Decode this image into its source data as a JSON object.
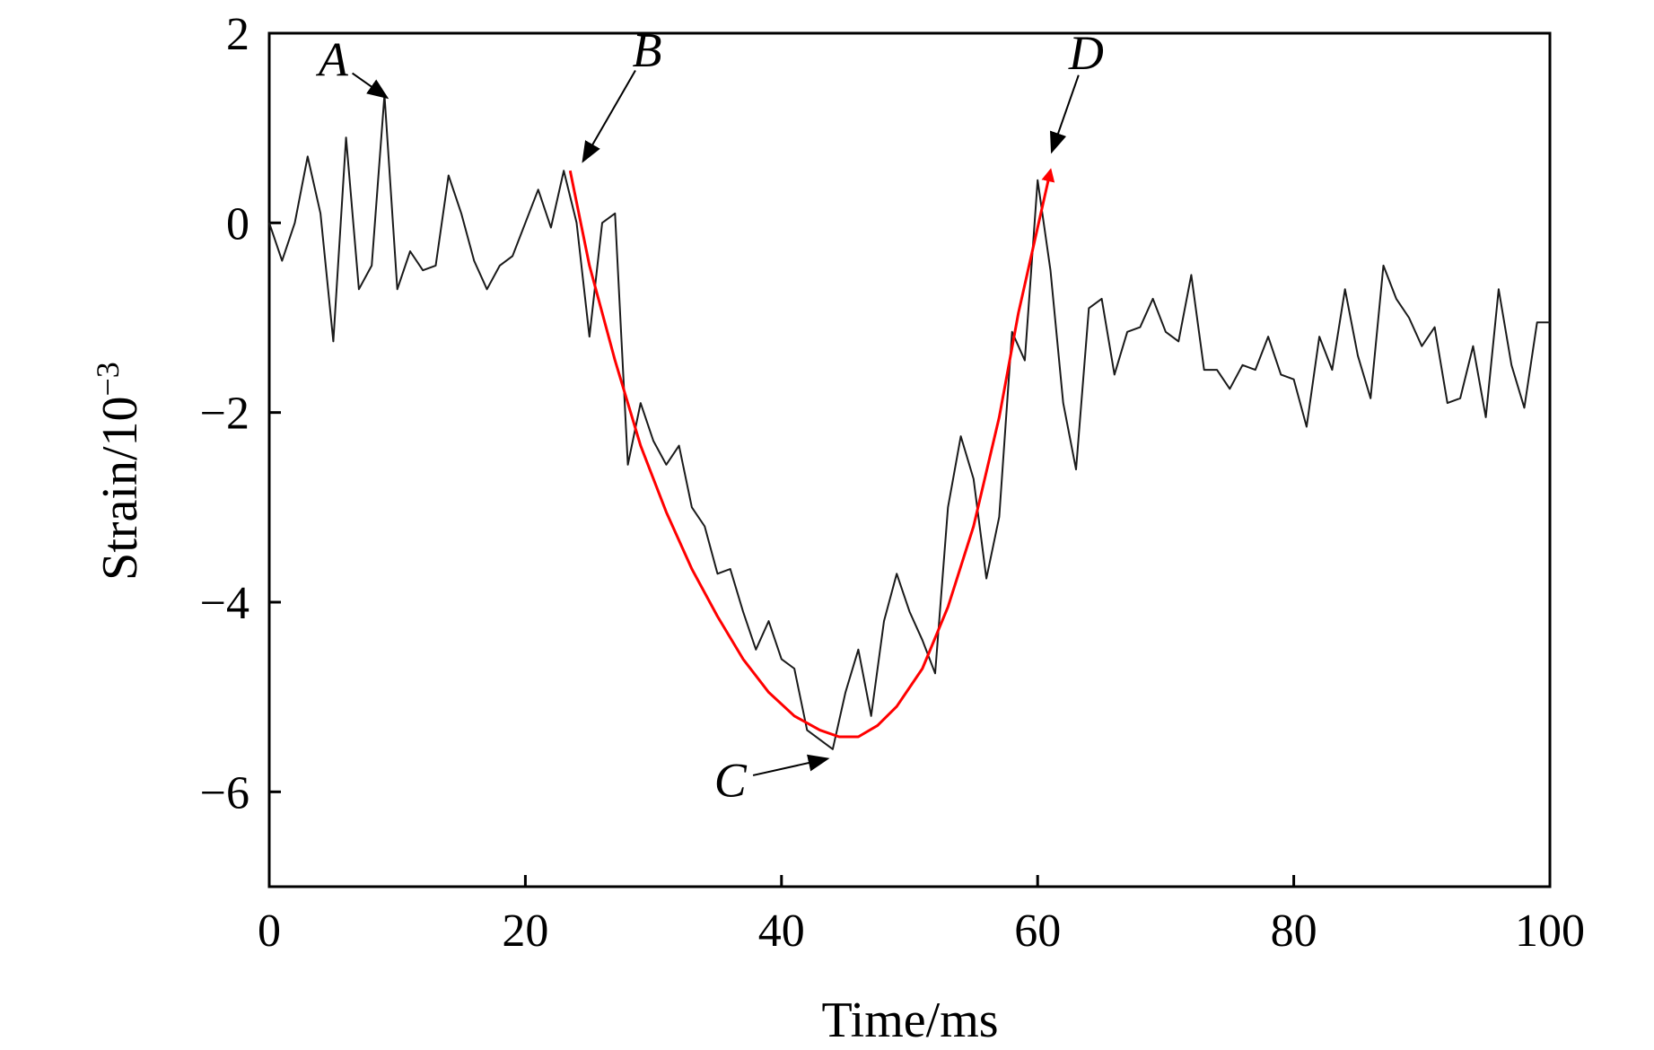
{
  "chart_data": {
    "type": "line",
    "xlabel": "Time/ms",
    "ylabel_base": "Strain/10",
    "ylabel_exp": "−3",
    "xlim": [
      0,
      100
    ],
    "ylim": [
      -7,
      2
    ],
    "xticks": [
      0,
      20,
      40,
      60,
      80,
      100
    ],
    "xtick_labels": [
      "0",
      "20",
      "40",
      "60",
      "80",
      "100"
    ],
    "yticks": [
      2,
      0,
      -2,
      -4,
      -6
    ],
    "ytick_labels": [
      "2",
      "0",
      "−2",
      "−4",
      "−6"
    ],
    "grid": false,
    "series": [
      {
        "color": "#1a1a1a",
        "x": [
          0,
          1,
          2,
          3,
          4,
          5,
          6,
          7,
          8,
          9,
          10,
          11,
          12,
          13,
          14,
          15,
          16,
          17,
          18,
          19,
          20,
          21,
          22,
          23,
          24,
          25,
          26,
          27,
          28,
          29,
          30,
          31,
          32,
          33,
          34,
          35,
          36,
          37,
          38,
          39,
          40,
          41,
          42,
          43,
          44,
          45,
          46,
          47,
          48,
          49,
          50,
          51,
          52,
          53,
          54,
          55,
          56,
          57,
          58,
          59,
          60,
          61,
          62,
          63,
          64,
          65,
          66,
          67,
          68,
          69,
          70,
          71,
          72,
          73,
          74,
          75,
          76,
          77,
          78,
          79,
          80,
          81,
          82,
          83,
          84,
          85,
          86,
          87,
          88,
          89,
          90,
          91,
          92,
          93,
          94,
          95,
          96,
          97,
          98,
          99,
          100
        ],
        "y": [
          0,
          -0.4,
          0,
          0.7,
          0.1,
          -1.25,
          0.9,
          -0.7,
          -0.45,
          1.35,
          -0.7,
          -0.3,
          -0.5,
          -0.45,
          0.5,
          0.1,
          -0.4,
          -0.7,
          -0.45,
          -0.35,
          0,
          0.35,
          -0.05,
          0.55,
          0,
          -1.2,
          0,
          0.1,
          -2.55,
          -1.9,
          -2.3,
          -2.55,
          -2.35,
          -3,
          -3.2,
          -3.7,
          -3.65,
          -4.1,
          -4.5,
          -4.2,
          -4.6,
          -4.7,
          -5.35,
          -5.45,
          -5.55,
          -4.95,
          -4.5,
          -5.2,
          -4.2,
          -3.7,
          -4.1,
          -4.4,
          -4.75,
          -3,
          -2.25,
          -2.7,
          -3.75,
          -3.1,
          -1.15,
          -1.45,
          0.45,
          -0.5,
          -1.9,
          -2.6,
          -0.9,
          -0.8,
          -1.6,
          -1.15,
          -1.1,
          -0.8,
          -1.15,
          -1.25,
          -0.55,
          -1.55,
          -1.55,
          -1.75,
          -1.5,
          -1.55,
          -1.2,
          -1.6,
          -1.65,
          -2.15,
          -1.2,
          -1.55,
          -0.7,
          -1.4,
          -1.85,
          -0.45,
          -0.8,
          -1,
          -1.3,
          -1.1,
          -1.9,
          -1.85,
          -1.3,
          -2.05,
          -0.7,
          -1.5,
          -1.95,
          -1.05,
          -1.05
        ]
      },
      {
        "color": "#ff0000",
        "x": [
          23.5,
          25,
          27,
          29,
          31,
          33,
          35,
          37,
          39,
          41,
          43,
          44.5,
          46,
          47.5,
          49,
          51,
          53,
          55,
          57,
          58.5,
          60,
          61
        ],
        "y": [
          0.55,
          -0.45,
          -1.45,
          -2.35,
          -3.05,
          -3.65,
          -4.15,
          -4.6,
          -4.95,
          -5.2,
          -5.35,
          -5.42,
          -5.42,
          -5.3,
          -5.1,
          -4.7,
          -4.05,
          -3.2,
          -2.05,
          -0.95,
          -0.05,
          0.55
        ]
      }
    ],
    "annotations": [
      {
        "label": "A",
        "text_x": 5.0,
        "text_y": 1.55,
        "tip_x": 9.2,
        "tip_y": 1.32
      },
      {
        "label": "B",
        "text_x": 29.5,
        "text_y": 1.65,
        "tip_x": 24.5,
        "tip_y": 0.65
      },
      {
        "label": "C",
        "text_x": 36.0,
        "text_y": -6.05,
        "tip_x": 43.6,
        "tip_y": -5.65
      },
      {
        "label": "D",
        "text_x": 63.8,
        "text_y": 1.62,
        "tip_x": 61.1,
        "tip_y": 0.75
      }
    ]
  }
}
